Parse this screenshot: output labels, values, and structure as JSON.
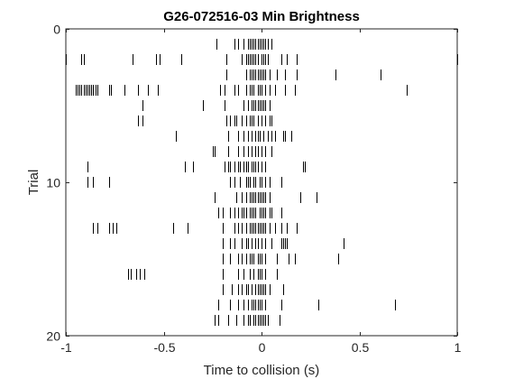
{
  "chart_data": {
    "type": "raster",
    "title": "G26-072516-03 Min Brightness",
    "xlabel": "Time to collision (s)",
    "ylabel": "Trial",
    "xlim": [
      -1,
      1
    ],
    "ylim": [
      0,
      20
    ],
    "y_reversed": true,
    "xticks": [
      -1,
      -0.5,
      0,
      0.5,
      1
    ],
    "xtick_labels": [
      "-1",
      "-0.5",
      "0",
      "0.5",
      "1"
    ],
    "yticks": [
      0,
      10,
      20
    ],
    "ytick_labels": [
      "0",
      "10",
      "20"
    ],
    "grid": false,
    "trials": [
      {
        "trial": 1,
        "spikes": [
          -0.23,
          -0.14,
          -0.12,
          -0.09,
          -0.07,
          -0.06,
          -0.05,
          -0.04,
          -0.03,
          -0.02,
          -0.01,
          0.0,
          0.01,
          0.02,
          0.03,
          0.05
        ]
      },
      {
        "trial": 2,
        "spikes": [
          -1.0,
          -0.92,
          -0.91,
          -0.66,
          -0.54,
          -0.52,
          -0.41,
          -0.18,
          -0.1,
          -0.08,
          -0.07,
          -0.06,
          -0.05,
          -0.04,
          -0.03,
          -0.02,
          0.0,
          0.01,
          0.02,
          0.03,
          0.1,
          0.13,
          0.18,
          1.0
        ]
      },
      {
        "trial": 3,
        "spikes": [
          -0.18,
          -0.08,
          -0.06,
          -0.05,
          -0.04,
          -0.03,
          -0.02,
          -0.01,
          0.0,
          0.01,
          0.02,
          0.04,
          0.08,
          0.12,
          0.18,
          0.38,
          0.61
        ]
      },
      {
        "trial": 4,
        "spikes": [
          -0.95,
          -0.94,
          -0.93,
          -0.92,
          -0.91,
          -0.9,
          -0.89,
          -0.88,
          -0.87,
          -0.86,
          -0.85,
          -0.84,
          -0.78,
          -0.77,
          -0.7,
          -0.63,
          -0.58,
          -0.53,
          -0.21,
          -0.19,
          -0.14,
          -0.12,
          -0.08,
          -0.06,
          -0.05,
          -0.04,
          -0.02,
          -0.01,
          0.0,
          0.02,
          0.04,
          0.07,
          0.12,
          0.17,
          0.74
        ]
      },
      {
        "trial": 5,
        "spikes": [
          -0.61,
          -0.3,
          -0.19,
          -0.09,
          -0.07,
          -0.05,
          -0.04,
          -0.03,
          -0.02,
          -0.01,
          0.0,
          0.01,
          0.02,
          0.04
        ]
      },
      {
        "trial": 6,
        "spikes": [
          -0.63,
          -0.61,
          -0.18,
          -0.16,
          -0.14,
          -0.13,
          -0.1,
          -0.08,
          -0.06,
          -0.05,
          -0.04,
          -0.02,
          0.0,
          0.02,
          0.04,
          0.05
        ]
      },
      {
        "trial": 7,
        "spikes": [
          -0.44,
          -0.17,
          -0.12,
          -0.09,
          -0.07,
          -0.05,
          -0.03,
          -0.02,
          -0.01,
          0.01,
          0.03,
          0.05,
          0.07,
          0.11,
          0.12,
          0.15
        ]
      },
      {
        "trial": 8,
        "spikes": [
          -0.25,
          -0.24,
          -0.17,
          -0.12,
          -0.09,
          -0.07,
          -0.05,
          -0.03,
          -0.02,
          0.0,
          0.02,
          0.05
        ]
      },
      {
        "trial": 9,
        "spikes": [
          -0.89,
          -0.39,
          -0.35,
          -0.19,
          -0.17,
          -0.16,
          -0.14,
          -0.12,
          -0.11,
          -0.09,
          -0.08,
          -0.07,
          -0.05,
          -0.04,
          -0.03,
          -0.02,
          0.0,
          0.02,
          0.21,
          0.22
        ]
      },
      {
        "trial": 10,
        "spikes": [
          -0.89,
          -0.86,
          -0.78,
          -0.16,
          -0.14,
          -0.11,
          -0.08,
          -0.07,
          -0.06,
          -0.04,
          -0.03,
          -0.01,
          0.0,
          0.02,
          0.04,
          0.1
        ]
      },
      {
        "trial": 11,
        "spikes": [
          -0.24,
          -0.13,
          -0.1,
          -0.08,
          -0.06,
          -0.05,
          -0.04,
          -0.03,
          -0.02,
          -0.01,
          0.0,
          0.01,
          0.02,
          0.04,
          0.2,
          0.28
        ]
      },
      {
        "trial": 12,
        "spikes": [
          -0.22,
          -0.2,
          -0.16,
          -0.14,
          -0.12,
          -0.1,
          -0.09,
          -0.08,
          -0.06,
          -0.05,
          -0.04,
          -0.03,
          -0.01,
          0.0,
          0.01,
          0.02,
          0.04,
          0.05,
          0.1
        ]
      },
      {
        "trial": 13,
        "spikes": [
          -0.86,
          -0.84,
          -0.78,
          -0.76,
          -0.74,
          -0.45,
          -0.38,
          -0.2,
          -0.14,
          -0.12,
          -0.1,
          -0.08,
          -0.06,
          -0.05,
          -0.04,
          -0.03,
          -0.02,
          -0.01,
          0.0,
          0.01,
          0.02,
          0.04,
          0.07,
          0.1,
          0.13,
          0.18
        ]
      },
      {
        "trial": 14,
        "spikes": [
          -0.2,
          -0.16,
          -0.14,
          -0.1,
          -0.08,
          -0.07,
          -0.05,
          -0.03,
          -0.02,
          0.0,
          0.02,
          0.05,
          0.1,
          0.11,
          0.12,
          0.13,
          0.42
        ]
      },
      {
        "trial": 15,
        "spikes": [
          -0.2,
          -0.16,
          -0.12,
          -0.1,
          -0.08,
          -0.06,
          -0.05,
          -0.04,
          -0.02,
          -0.01,
          0.0,
          0.02,
          0.08,
          0.14,
          0.17,
          0.39
        ]
      },
      {
        "trial": 16,
        "spikes": [
          -0.68,
          -0.67,
          -0.64,
          -0.62,
          -0.6,
          -0.2,
          -0.12,
          -0.09,
          -0.06,
          -0.04,
          -0.02,
          -0.01,
          0.0,
          0.02,
          0.08
        ]
      },
      {
        "trial": 17,
        "spikes": [
          -0.2,
          -0.15,
          -0.12,
          -0.1,
          -0.08,
          -0.07,
          -0.05,
          -0.03,
          -0.02,
          -0.01,
          0.0,
          0.01,
          0.02,
          0.04,
          0.11
        ]
      },
      {
        "trial": 18,
        "spikes": [
          -0.22,
          -0.16,
          -0.12,
          -0.09,
          -0.07,
          -0.05,
          -0.04,
          -0.03,
          -0.02,
          -0.01,
          0.0,
          0.02,
          0.1,
          0.29,
          0.68
        ]
      },
      {
        "trial": 19,
        "spikes": [
          -0.24,
          -0.22,
          -0.17,
          -0.13,
          -0.09,
          -0.07,
          -0.06,
          -0.04,
          -0.03,
          -0.02,
          -0.01,
          0.0,
          0.01,
          0.02,
          0.03,
          0.09
        ]
      }
    ]
  }
}
